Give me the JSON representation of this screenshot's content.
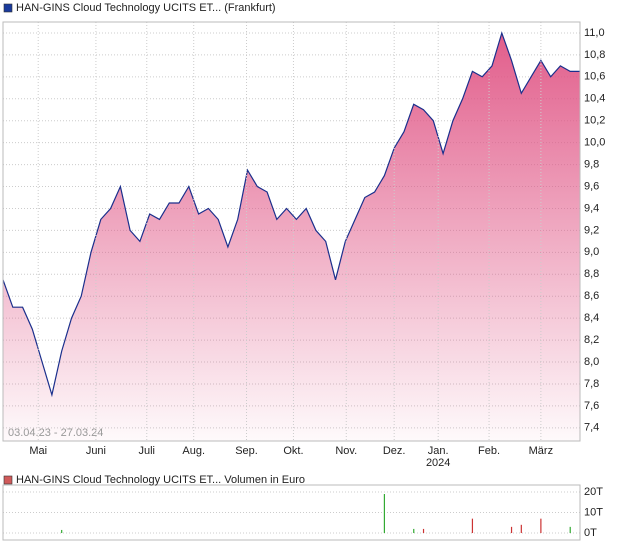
{
  "chart_data": [
    {
      "type": "area",
      "legend": "HAN-GINS Cloud Technology UCITS ET... (Frankfurt)",
      "annotation": "03.04.23 - 27.03.24",
      "year_label": "2024",
      "series": [
        {
          "name": "HAN-GINS Cloud Technology UCITS ET...",
          "color": "#1a2f8c",
          "values": [
            8.75,
            8.5,
            8.5,
            8.3,
            8.0,
            7.7,
            8.1,
            8.4,
            8.6,
            9.0,
            9.3,
            9.4,
            9.6,
            9.2,
            9.1,
            9.35,
            9.3,
            9.45,
            9.45,
            9.6,
            9.35,
            9.4,
            9.3,
            9.05,
            9.3,
            9.75,
            9.6,
            9.55,
            9.3,
            9.4,
            9.3,
            9.4,
            9.2,
            9.1,
            8.75,
            9.1,
            9.3,
            9.5,
            9.55,
            9.7,
            9.95,
            10.1,
            10.35,
            10.3,
            10.2,
            9.9,
            10.2,
            10.4,
            10.65,
            10.6,
            10.7,
            11.0,
            10.75,
            10.45,
            10.6,
            10.75,
            10.6,
            10.7,
            10.65,
            10.65
          ]
        }
      ],
      "fill_color": "#e05585",
      "xlim": [
        0,
        59
      ],
      "xticks": [
        {
          "value": 3.6,
          "label": "Mai"
        },
        {
          "value": 9.5,
          "label": "Juni"
        },
        {
          "value": 14.7,
          "label": "Juli"
        },
        {
          "value": 19.5,
          "label": "Aug."
        },
        {
          "value": 24.9,
          "label": "Sep."
        },
        {
          "value": 29.7,
          "label": "Okt."
        },
        {
          "value": 35.1,
          "label": "Nov."
        },
        {
          "value": 40.0,
          "label": "Dez."
        },
        {
          "value": 44.5,
          "label": "Jan."
        },
        {
          "value": 49.7,
          "label": "Feb."
        },
        {
          "value": 55.0,
          "label": "März"
        }
      ],
      "ylim": [
        7.28,
        11.1
      ],
      "yticks": [
        {
          "value": 7.4,
          "label": "7,4"
        },
        {
          "value": 7.6,
          "label": "7,6"
        },
        {
          "value": 7.8,
          "label": "7,8"
        },
        {
          "value": 8.0,
          "label": "8,0"
        },
        {
          "value": 8.2,
          "label": "8,2"
        },
        {
          "value": 8.4,
          "label": "8,4"
        },
        {
          "value": 8.6,
          "label": "8,6"
        },
        {
          "value": 8.8,
          "label": "8,8"
        },
        {
          "value": 9.0,
          "label": "9,0"
        },
        {
          "value": 9.2,
          "label": "9,2"
        },
        {
          "value": 9.4,
          "label": "9,4"
        },
        {
          "value": 9.6,
          "label": "9,6"
        },
        {
          "value": 9.8,
          "label": "9,8"
        },
        {
          "value": 10.0,
          "label": "10,0"
        },
        {
          "value": 10.2,
          "label": "10,2"
        },
        {
          "value": 10.4,
          "label": "10,4"
        },
        {
          "value": 10.6,
          "label": "10,6"
        },
        {
          "value": 10.8,
          "label": "10,8"
        },
        {
          "value": 11.0,
          "label": "11,0"
        }
      ],
      "grid": true
    },
    {
      "type": "bar",
      "legend": "HAN-GINS Cloud Technology UCITS ET... Volumen in Euro",
      "values": [
        0,
        0,
        0,
        0,
        0,
        0,
        1.5,
        0,
        0,
        0,
        0,
        0,
        0,
        0,
        0,
        0,
        0,
        0,
        0,
        0,
        0,
        0,
        0,
        0,
        0,
        0,
        0,
        0,
        0,
        0,
        0,
        0,
        0,
        0,
        0,
        0,
        0,
        0,
        0,
        19,
        0,
        0,
        2,
        2,
        0,
        0,
        0,
        0,
        7,
        0,
        0,
        0,
        3,
        4,
        0,
        7,
        0,
        0,
        3,
        0
      ],
      "colors": [
        "#3a3",
        "#3a3",
        "#3a3",
        "#3a3",
        "#3a3",
        "#3a3",
        "#3a3",
        "#3a3",
        "#3a3",
        "#3a3",
        "#3a3",
        "#3a3",
        "#3a3",
        "#3a3",
        "#3a3",
        "#3a3",
        "#3a3",
        "#3a3",
        "#3a3",
        "#3a3",
        "#3a3",
        "#3a3",
        "#3a3",
        "#3a3",
        "#3a3",
        "#3a3",
        "#3a3",
        "#3a3",
        "#3a3",
        "#3a3",
        "#3a3",
        "#3a3",
        "#3a3",
        "#3a3",
        "#3a3",
        "#3a3",
        "#3a3",
        "#3a3",
        "#3a3",
        "#3a3",
        "#3a3",
        "#3a3",
        "#3a3",
        "#c33",
        "#3a3",
        "#3a3",
        "#3a3",
        "#3a3",
        "#c33",
        "#3a3",
        "#3a3",
        "#3a3",
        "#c33",
        "#c33",
        "#3a3",
        "#c33",
        "#3a3",
        "#3a3",
        "#3a3",
        "#3a3"
      ],
      "xlim": [
        0,
        59
      ],
      "ylim": [
        -3.4,
        23.4
      ],
      "yticks": [
        {
          "value": 0,
          "label": "0T"
        },
        {
          "value": 10,
          "label": "10T"
        },
        {
          "value": 20,
          "label": "20T"
        }
      ],
      "grid": true
    }
  ]
}
